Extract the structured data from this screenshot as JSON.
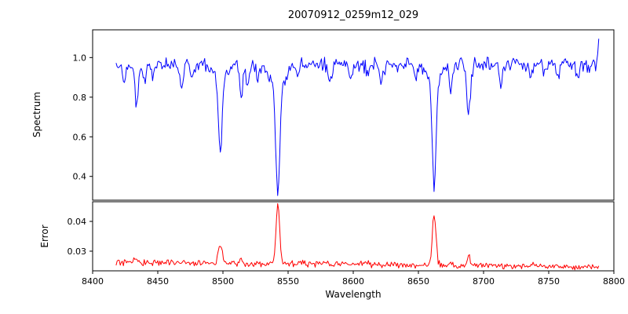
{
  "chart_data": {
    "type": "line",
    "title": "20070912_0259m12_029",
    "xlabel": "Wavelength",
    "x_lim": [
      8400,
      8800
    ],
    "x_data_range": [
      8418,
      8789
    ],
    "x_ticks": [
      8400,
      8450,
      8500,
      8550,
      8600,
      8650,
      8700,
      8750,
      8800
    ],
    "sample_step": 0.8,
    "seed": 20070912,
    "grid": false,
    "legend": "none",
    "subplots": [
      {
        "name": "spectrum",
        "ylabel": "Spectrum",
        "color": "#0000ff",
        "ylim": [
          0.28,
          1.14
        ],
        "ytick_values": [
          0.4,
          0.6,
          0.8,
          1.0
        ],
        "ytick_labels": [
          "0.4",
          "0.6",
          "0.8",
          "1.0"
        ],
        "continuum": 0.965,
        "noise_sd": 0.017,
        "edge_spike": {
          "center": 8789.0,
          "height": 0.15,
          "width": 0.9
        },
        "absorption_lines": [
          {
            "center": 8424.0,
            "depth": 0.1,
            "width": 1.0
          },
          {
            "center": 8433.5,
            "depth": 0.21,
            "width": 1.2
          },
          {
            "center": 8440.0,
            "depth": 0.09,
            "width": 1.0
          },
          {
            "center": 8446.5,
            "depth": 0.07,
            "width": 1.0
          },
          {
            "center": 8468.4,
            "depth": 0.13,
            "width": 1.3
          },
          {
            "center": 8476.0,
            "depth": 0.07,
            "width": 1.0
          },
          {
            "center": 8498.0,
            "depth": 0.37,
            "width": 1.3
          },
          {
            "center": 8498.0,
            "depth": 0.09,
            "width": 4.0
          },
          {
            "center": 8514.1,
            "depth": 0.16,
            "width": 1.2
          },
          {
            "center": 8518.8,
            "depth": 0.12,
            "width": 1.1
          },
          {
            "center": 8527.0,
            "depth": 0.07,
            "width": 1.0
          },
          {
            "center": 8542.1,
            "depth": 0.52,
            "width": 1.5
          },
          {
            "center": 8542.1,
            "depth": 0.12,
            "width": 5.0
          },
          {
            "center": 8556.8,
            "depth": 0.06,
            "width": 1.0
          },
          {
            "center": 8582.3,
            "depth": 0.08,
            "width": 1.1
          },
          {
            "center": 8598.4,
            "depth": 0.1,
            "width": 1.1
          },
          {
            "center": 8611.0,
            "depth": 0.07,
            "width": 1.0
          },
          {
            "center": 8621.6,
            "depth": 0.09,
            "width": 1.1
          },
          {
            "center": 8648.0,
            "depth": 0.06,
            "width": 1.0
          },
          {
            "center": 8662.1,
            "depth": 0.5,
            "width": 1.4
          },
          {
            "center": 8662.1,
            "depth": 0.12,
            "width": 4.5
          },
          {
            "center": 8674.8,
            "depth": 0.14,
            "width": 1.1
          },
          {
            "center": 8688.6,
            "depth": 0.25,
            "width": 1.4
          },
          {
            "center": 8713.2,
            "depth": 0.08,
            "width": 1.1
          },
          {
            "center": 8736.0,
            "depth": 0.07,
            "width": 1.0
          },
          {
            "center": 8747.0,
            "depth": 0.06,
            "width": 1.0
          },
          {
            "center": 8757.1,
            "depth": 0.07,
            "width": 1.0
          },
          {
            "center": 8772.0,
            "depth": 0.08,
            "width": 1.0
          }
        ]
      },
      {
        "name": "error",
        "ylabel": "Error",
        "color": "#ff0000",
        "ylim": [
          0.0234,
          0.0466
        ],
        "ytick_values": [
          0.03,
          0.04
        ],
        "ytick_labels": [
          "0.03",
          "0.04"
        ],
        "baseline_start": 0.0263,
        "baseline_slope_per_angstrom": -4e-06,
        "noise_sd": 0.00055,
        "spikes": [
          {
            "center": 8433.5,
            "height": 0.0014,
            "width": 1.4
          },
          {
            "center": 8498.0,
            "height": 0.0065,
            "width": 1.5
          },
          {
            "center": 8514.1,
            "height": 0.0018,
            "width": 1.2
          },
          {
            "center": 8542.1,
            "height": 0.0195,
            "width": 1.4
          },
          {
            "center": 8662.1,
            "height": 0.0175,
            "width": 1.4
          },
          {
            "center": 8674.8,
            "height": 0.0012,
            "width": 1.2
          },
          {
            "center": 8688.6,
            "height": 0.0032,
            "width": 1.2
          }
        ]
      }
    ]
  }
}
